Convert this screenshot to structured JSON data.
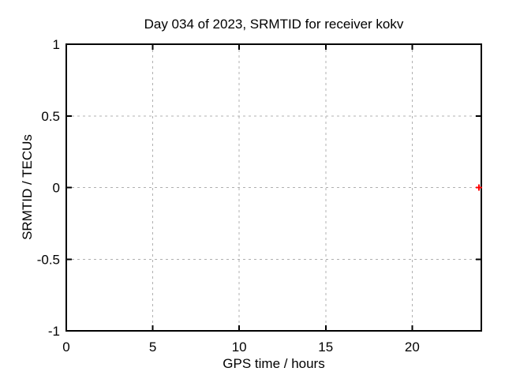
{
  "chart_data": {
    "type": "scatter",
    "title": "Day 034 of 2023, SRMTID for receiver kokv",
    "xlabel": "GPS time / hours",
    "ylabel": "SRMTID / TECUs",
    "xlim": [
      0,
      24
    ],
    "ylim": [
      -1,
      1
    ],
    "xticks": [
      0,
      5,
      10,
      15,
      20
    ],
    "xtick_labels": [
      "0",
      "5",
      "10",
      "15",
      "20"
    ],
    "yticks": [
      -1,
      -0.5,
      0,
      0.5,
      1
    ],
    "ytick_labels": [
      "-1",
      "-0.5",
      "0",
      "0.5",
      "1"
    ],
    "grid": "dashed",
    "legend": "none",
    "series": [
      {
        "name": "SRMTID",
        "marker": "plus",
        "color": "#ff0000",
        "points": [
          {
            "x": 23.86,
            "y": 0.0
          }
        ]
      }
    ],
    "colors": {
      "background": "#ffffff",
      "border": "#000000",
      "grid": "#b0b0b0",
      "text": "#000000"
    }
  }
}
